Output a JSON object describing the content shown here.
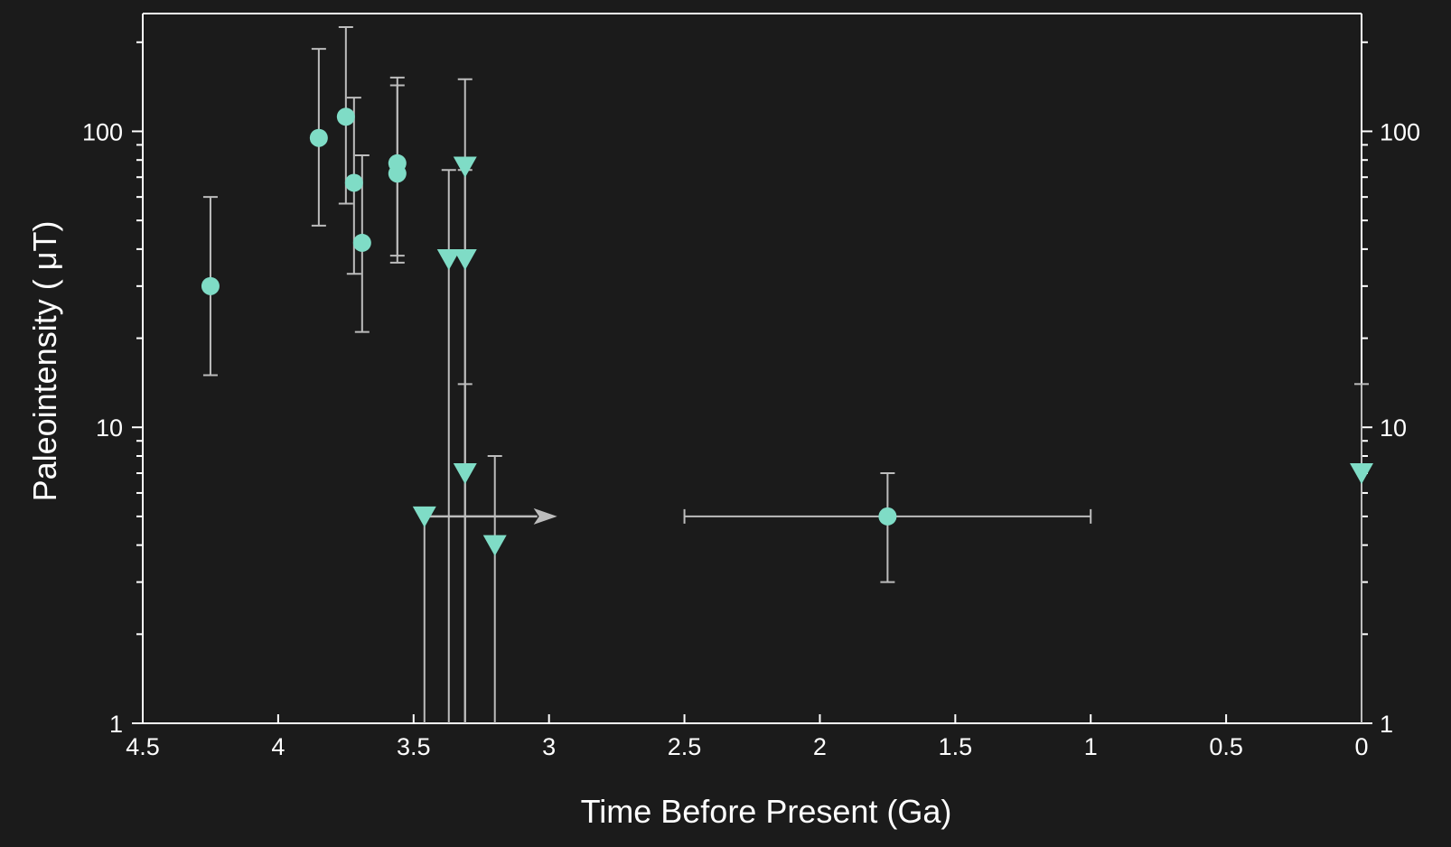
{
  "chart_data": {
    "type": "scatter",
    "title": "",
    "xlabel": "Time Before Present (Ga)",
    "ylabel": "Paleointensity ( μT)",
    "x_reversed": true,
    "xlim": [
      4.5,
      0
    ],
    "ylim": [
      1,
      250
    ],
    "y_scale": "log",
    "grid": false,
    "x_ticks": [
      4.5,
      4,
      3.5,
      3,
      2.5,
      2,
      1.5,
      1,
      0.5,
      0
    ],
    "x_tick_labels": [
      "4.5",
      "4",
      "3.5",
      "3",
      "2.5",
      "2",
      "1.5",
      "1",
      "0.5",
      "0"
    ],
    "y_ticks": [
      1,
      10,
      100
    ],
    "y_tick_labels": [
      "1",
      "10",
      "100"
    ],
    "colors": {
      "marker": "#7fdcc6",
      "errorbar": "#bdbdbd",
      "background": "#1b1b1b",
      "axis": "#ffffff"
    },
    "series": [
      {
        "marker": "circle",
        "points": [
          {
            "x": 4.25,
            "y": 30,
            "ylo": 15,
            "yhi": 60
          },
          {
            "x": 3.85,
            "y": 95,
            "ylo": 48,
            "yhi": 190
          },
          {
            "x": 3.75,
            "y": 112,
            "ylo": 57,
            "yhi": 225
          },
          {
            "x": 3.72,
            "y": 67,
            "ylo": 33,
            "yhi": 130
          },
          {
            "x": 3.69,
            "y": 42,
            "ylo": 21,
            "yhi": 83
          },
          {
            "x": 3.56,
            "y": 78,
            "ylo": 38,
            "yhi": 152
          },
          {
            "x": 3.56,
            "y": 72,
            "ylo": 36,
            "yhi": 143
          },
          {
            "x": 1.75,
            "y": 5,
            "ylo": 3,
            "yhi": 7,
            "xlo": 2.5,
            "xhi": 1.0
          }
        ]
      },
      {
        "marker": "triangle-down",
        "points": [
          {
            "x": 3.31,
            "y": 76,
            "ylo": 1,
            "yhi": 150
          },
          {
            "x": 3.37,
            "y": 37,
            "ylo": 1,
            "yhi": 74
          },
          {
            "x": 3.31,
            "y": 37,
            "ylo": 1,
            "yhi": 74
          },
          {
            "x": 3.31,
            "y": 7,
            "ylo": 1,
            "yhi": 14
          },
          {
            "x": 3.2,
            "y": 4,
            "ylo": 1,
            "yhi": 8
          },
          {
            "x": 3.46,
            "y": 5,
            "ylo": 1,
            "yhi": null,
            "arrow_to_x": 2.97
          },
          {
            "x": 0.0,
            "y": 7,
            "ylo": 1,
            "yhi": 14
          }
        ]
      }
    ]
  }
}
